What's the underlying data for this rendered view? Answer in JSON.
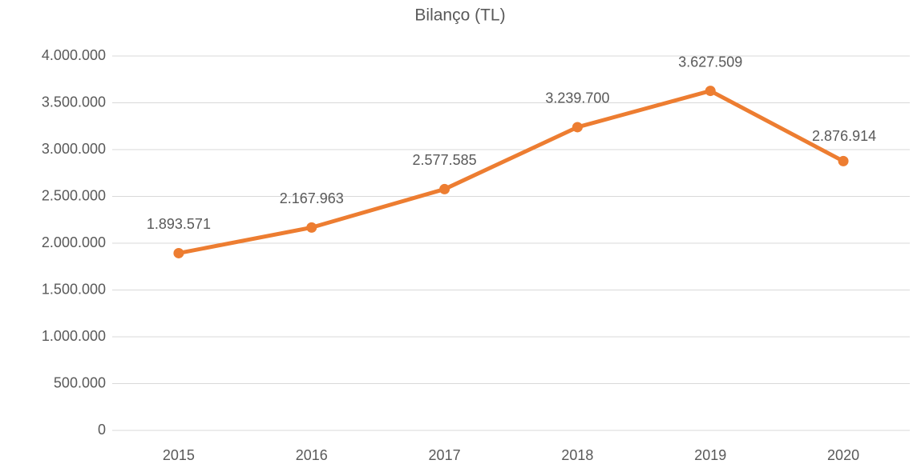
{
  "chart_data": {
    "type": "line",
    "title": "Bilanço (TL)",
    "categories": [
      "2015",
      "2016",
      "2017",
      "2018",
      "2019",
      "2020"
    ],
    "values": [
      1893571,
      2167963,
      2577585,
      3239700,
      3627509,
      2876914
    ],
    "value_labels": [
      "1.893.571",
      "2.167.963",
      "2.577.585",
      "3.239.700",
      "3.627.509",
      "2.876.914"
    ],
    "color": "#ed7d31",
    "ylim": [
      0,
      4000000
    ],
    "yticks": [
      0,
      {
        "value": 500000,
        "label": "500.000"
      },
      {
        "value": 1000000,
        "label": "1.000.000"
      },
      {
        "value": 1500000,
        "label": "1.500.000"
      },
      {
        "value": 2000000,
        "label": "2.000.000"
      },
      {
        "value": 2500000,
        "label": "2.500.000"
      },
      {
        "value": 3000000,
        "label": "3.000.000"
      },
      {
        "value": 3500000,
        "label": "3.500.000"
      },
      {
        "value": 4000000,
        "label": "4.000.000"
      }
    ],
    "grid": true
  }
}
